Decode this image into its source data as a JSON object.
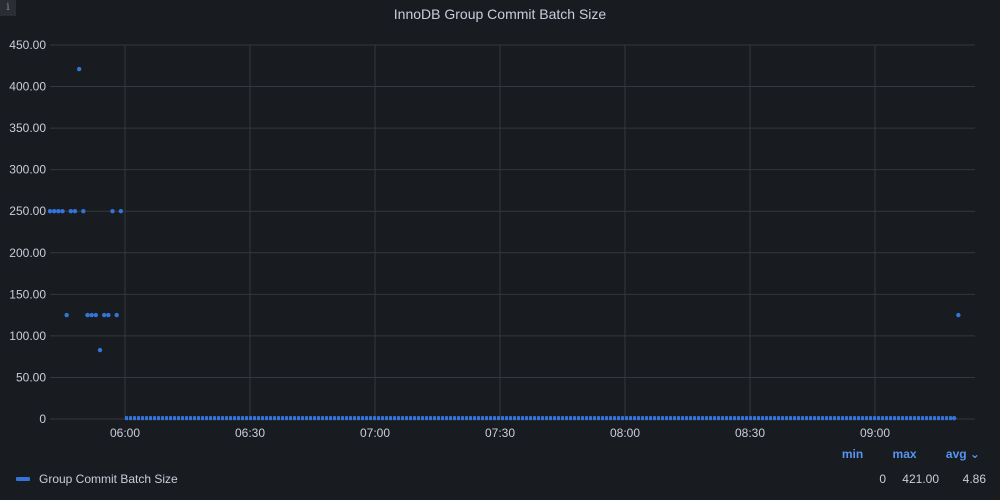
{
  "panel": {
    "title": "InnoDB Group Commit Batch Size",
    "info_icon": "i"
  },
  "legend": {
    "headers": {
      "min": "min",
      "max": "max",
      "avg": "avg ⌄"
    },
    "series": [
      {
        "name": "Group Commit Batch Size",
        "min": "0",
        "max": "421.00",
        "avg": "4.86"
      }
    ]
  },
  "colors": {
    "series": "#3274d9",
    "grid": "#34373d",
    "background": "#181b1f",
    "header_accent": "#5794f2"
  },
  "chart_data": {
    "type": "scatter",
    "title": "InnoDB Group Commit Batch Size",
    "xlabel": "",
    "ylabel": "",
    "xlim": [
      "05:42",
      "09:20"
    ],
    "ylim": [
      0,
      450
    ],
    "grid": true,
    "legend": "bottom",
    "x_ticks": [
      "06:00",
      "06:30",
      "07:00",
      "07:30",
      "08:00",
      "08:30",
      "09:00"
    ],
    "y_ticks": [
      "0",
      "50.00",
      "100.00",
      "150.00",
      "200.00",
      "250.00",
      "300.00",
      "350.00",
      "400.00",
      "450.00"
    ],
    "series": [
      {
        "name": "Group Commit Batch Size",
        "points": [
          [
            "05:42",
            250
          ],
          [
            "05:43",
            250
          ],
          [
            "05:44",
            250
          ],
          [
            "05:45",
            250
          ],
          [
            "05:46",
            125
          ],
          [
            "05:47",
            250
          ],
          [
            "05:48",
            250
          ],
          [
            "05:49",
            421
          ],
          [
            "05:50",
            250
          ],
          [
            "05:51",
            125
          ],
          [
            "05:52",
            125
          ],
          [
            "05:53",
            125
          ],
          [
            "05:54",
            83
          ],
          [
            "05:55",
            125
          ],
          [
            "05:56",
            125
          ],
          [
            "05:57",
            250
          ],
          [
            "05:58",
            125
          ],
          [
            "05:59",
            250
          ],
          [
            "09:19",
            1
          ],
          [
            "09:20",
            125
          ]
        ],
        "baseline": {
          "from": "06:00",
          "to": "09:19",
          "value": 1
        }
      }
    ]
  }
}
